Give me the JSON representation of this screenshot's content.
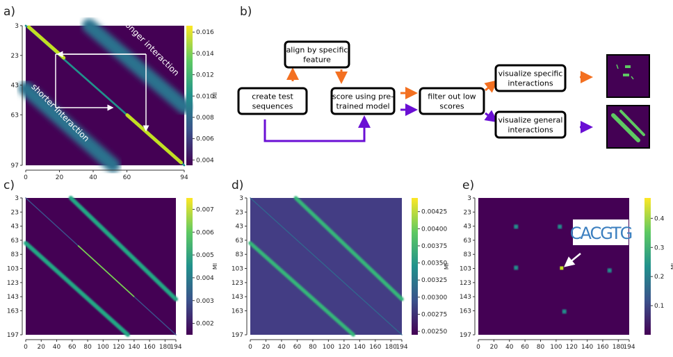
{
  "chart_data": [
    {
      "type": "heatmap",
      "panel_label": "a)",
      "xlim": [
        0,
        94
      ],
      "ylim": [
        3,
        97
      ],
      "xticks": [
        0,
        20,
        40,
        60,
        94
      ],
      "yticks": [
        3,
        23,
        43,
        63,
        97
      ],
      "colorbar": {
        "label": "MI",
        "lim": [
          0.0035,
          0.0166
        ],
        "ticks": [
          0.004,
          0.006,
          0.008,
          {
            "value": 0.01,
            "label": "0.010"
          },
          0.012,
          0.014,
          0.016
        ]
      },
      "annotations": [
        "longer interaction",
        "shorter interaction"
      ]
    },
    {
      "type": "heatmap",
      "panel_label": "c)",
      "xlim": [
        0,
        194
      ],
      "ylim": [
        3,
        197
      ],
      "xticks": [
        0,
        20,
        40,
        60,
        80,
        100,
        120,
        140,
        160,
        180,
        194
      ],
      "yticks": [
        3,
        23,
        43,
        63,
        83,
        103,
        123,
        143,
        163,
        197
      ],
      "colorbar": {
        "label": "MI",
        "lim": [
          0.0015,
          0.0075
        ],
        "ticks": [
          0.002,
          0.003,
          0.004,
          0.005,
          0.006,
          0.007
        ]
      }
    },
    {
      "type": "heatmap",
      "panel_label": "d)",
      "xlim": [
        0,
        194
      ],
      "ylim": [
        3,
        197
      ],
      "xticks": [
        0,
        20,
        40,
        60,
        80,
        100,
        120,
        140,
        160,
        180,
        194
      ],
      "yticks": [
        3,
        23,
        43,
        63,
        83,
        103,
        123,
        143,
        163,
        197
      ],
      "colorbar": {
        "label": "MI",
        "lim": [
          0.00245,
          0.00445
        ],
        "ticks": [
          {
            "value": 0.0025,
            "label": "0.00250"
          },
          0.00275,
          {
            "value": 0.003,
            "label": "0.00300"
          },
          0.00325,
          {
            "value": 0.0035,
            "label": "0.00350"
          },
          0.00375,
          {
            "value": 0.004,
            "label": "0.00400"
          },
          0.00425
        ]
      }
    },
    {
      "type": "heatmap",
      "panel_label": "e)",
      "xlim": [
        0,
        194
      ],
      "ylim": [
        3,
        197
      ],
      "xticks": [
        0,
        20,
        40,
        60,
        80,
        100,
        120,
        140,
        160,
        180,
        194
      ],
      "yticks": [
        3,
        23,
        43,
        63,
        83,
        103,
        123,
        143,
        163,
        197
      ],
      "colorbar": {
        "label": "MI",
        "lim": [
          0,
          0.47
        ],
        "ticks": [
          0.1,
          0.2,
          0.3,
          0.4
        ]
      },
      "annotations": [
        "CACGTG"
      ]
    }
  ],
  "diagram": {
    "panel_label": "b)",
    "nodes": [
      {
        "lines": [
          "align by specific",
          "feature"
        ]
      },
      {
        "lines": [
          "create test",
          "sequences"
        ]
      },
      {
        "lines": [
          "score using pre-",
          "trained model"
        ]
      },
      {
        "lines": [
          "filter out low",
          "scores"
        ]
      },
      {
        "lines": [
          "visualize specific",
          "interactions"
        ]
      },
      {
        "lines": [
          "visualize general",
          "interactions"
        ]
      }
    ]
  }
}
